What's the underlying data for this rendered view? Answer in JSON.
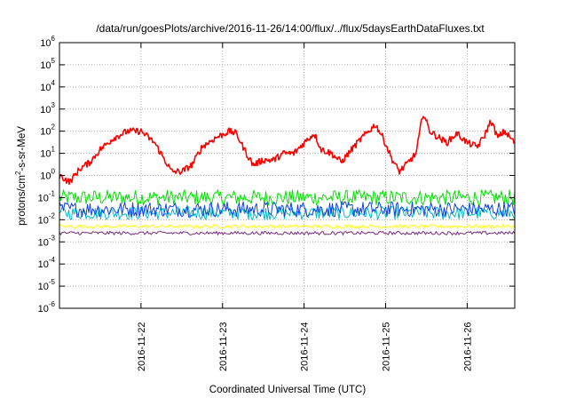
{
  "chart_data": {
    "type": "line",
    "title": "/data/run/goesPlots/archive/2016-11-26/14:00/flux/../flux/5daysEarthDataFluxes.txt",
    "xlabel": "Coordinated Universal Time (UTC)",
    "ylabel": {
      "prefix": "protons/cm",
      "sup": "2",
      "suffix": "-s-sr-MeV"
    },
    "yscale": "log",
    "ylim": [
      1e-06,
      1000000.0
    ],
    "xlim": [
      "2016-11-21T00:00",
      "2016-11-26T14:00"
    ],
    "grid": true,
    "legend": "none",
    "y_ticks": [
      {
        "v": 1e-06,
        "base": "10",
        "exp": "-6"
      },
      {
        "v": 1e-05,
        "base": "10",
        "exp": "-5"
      },
      {
        "v": 0.0001,
        "base": "10",
        "exp": "-4"
      },
      {
        "v": 0.001,
        "base": "10",
        "exp": "-3"
      },
      {
        "v": 0.01,
        "base": "10",
        "exp": "-2"
      },
      {
        "v": 0.1,
        "base": "10",
        "exp": "-1"
      },
      {
        "v": 1,
        "base": "10",
        "exp": "0"
      },
      {
        "v": 10,
        "base": "10",
        "exp": "1"
      },
      {
        "v": 100,
        "base": "10",
        "exp": "2"
      },
      {
        "v": 1000,
        "base": "10",
        "exp": "3"
      },
      {
        "v": 10000,
        "base": "10",
        "exp": "4"
      },
      {
        "v": 100000,
        "base": "10",
        "exp": "5"
      },
      {
        "v": 1000000,
        "base": "10",
        "exp": "6"
      }
    ],
    "x_ticks": [
      {
        "date": "2016-11-22",
        "label": "2016-11-22"
      },
      {
        "date": "2016-11-23",
        "label": "2016-11-23"
      },
      {
        "date": "2016-11-24",
        "label": "2016-11-24"
      },
      {
        "date": "2016-11-25",
        "label": "2016-11-25"
      },
      {
        "date": "2016-11-26",
        "label": "2016-11-26"
      }
    ],
    "series": [
      {
        "color": "#00e000",
        "baseline": 0.1,
        "noise_dex": 0.35
      },
      {
        "color": "#00bcc8",
        "baseline": 0.02,
        "noise_dex": 0.3
      },
      {
        "color": "#1040e8",
        "baseline": 0.03,
        "noise_dex": 0.35
      },
      {
        "color": "#ffff00",
        "baseline": 0.005,
        "noise_dex": 0.08
      },
      {
        "color": "#7a2c7a",
        "baseline": 0.0025,
        "noise_dex": 0.08
      },
      {
        "color": "#ff0000",
        "points": [
          [
            "2016-11-21T00:00",
            1.0
          ],
          [
            "2016-11-21T03:00",
            0.5
          ],
          [
            "2016-11-21T06:00",
            2.0
          ],
          [
            "2016-11-21T09:00",
            4.0
          ],
          [
            "2016-11-21T12:00",
            15
          ],
          [
            "2016-11-21T16:00",
            50
          ],
          [
            "2016-11-21T20:00",
            100
          ],
          [
            "2016-11-22T00:00",
            100
          ],
          [
            "2016-11-22T04:00",
            30
          ],
          [
            "2016-11-22T07:00",
            5
          ],
          [
            "2016-11-22T09:00",
            1.5
          ],
          [
            "2016-11-22T12:00",
            1.5
          ],
          [
            "2016-11-22T15:00",
            3
          ],
          [
            "2016-11-22T18:00",
            20
          ],
          [
            "2016-11-22T22:00",
            50
          ],
          [
            "2016-11-23T02:00",
            100
          ],
          [
            "2016-11-23T04:00",
            80
          ],
          [
            "2016-11-23T07:00",
            10
          ],
          [
            "2016-11-23T09:00",
            3
          ],
          [
            "2016-11-23T12:00",
            5
          ],
          [
            "2016-11-23T15:00",
            5
          ],
          [
            "2016-11-23T18:00",
            10
          ],
          [
            "2016-11-23T21:00",
            10
          ],
          [
            "2016-11-24T00:00",
            30
          ],
          [
            "2016-11-24T03:00",
            80
          ],
          [
            "2016-11-24T05:00",
            15
          ],
          [
            "2016-11-24T08:00",
            10
          ],
          [
            "2016-11-24T11:00",
            4
          ],
          [
            "2016-11-24T14:00",
            15
          ],
          [
            "2016-11-24T17:00",
            50
          ],
          [
            "2016-11-24T19:00",
            100
          ],
          [
            "2016-11-24T21:00",
            200
          ],
          [
            "2016-11-24T23:00",
            60
          ],
          [
            "2016-11-25T02:00",
            5
          ],
          [
            "2016-11-25T04:00",
            1.5
          ],
          [
            "2016-11-25T06:00",
            3
          ],
          [
            "2016-11-25T09:00",
            10
          ],
          [
            "2016-11-25T11:00",
            700
          ],
          [
            "2016-11-25T13:00",
            100
          ],
          [
            "2016-11-25T15:00",
            60
          ],
          [
            "2016-11-25T18:00",
            30
          ],
          [
            "2016-11-25T21:00",
            80
          ],
          [
            "2016-11-26T00:00",
            30
          ],
          [
            "2016-11-26T03:00",
            20
          ],
          [
            "2016-11-26T05:00",
            60
          ],
          [
            "2016-11-26T07:00",
            300
          ],
          [
            "2016-11-26T09:00",
            50
          ],
          [
            "2016-11-26T11:00",
            100
          ],
          [
            "2016-11-26T14:00",
            30
          ]
        ],
        "noise_dex": 0.15
      }
    ]
  }
}
